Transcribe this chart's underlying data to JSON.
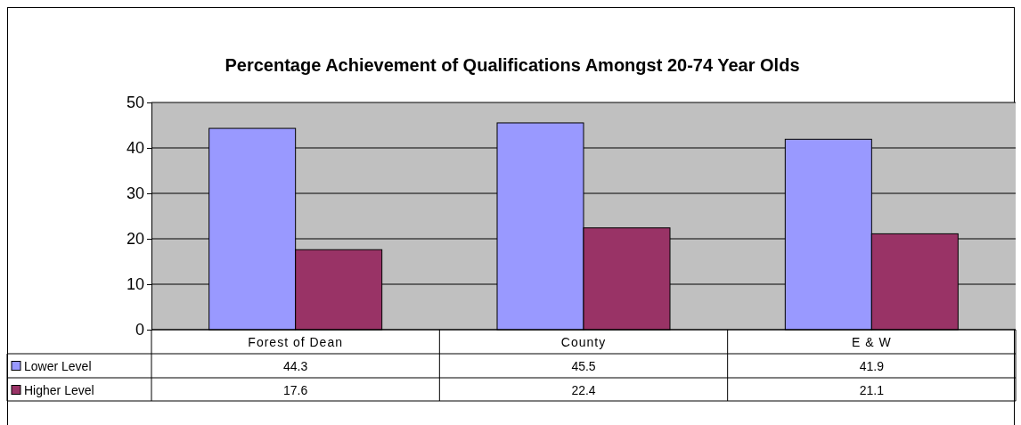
{
  "chart_data": {
    "type": "bar",
    "title": "Percentage Achievement of Qualifications Amongst 20-74 Year Olds",
    "categories": [
      "Forest of Dean",
      "County",
      "E & W"
    ],
    "series": [
      {
        "name": "Lower Level",
        "color": "#9999ff",
        "values": [
          44.3,
          45.5,
          41.9
        ]
      },
      {
        "name": "Higher Level",
        "color": "#993366",
        "values": [
          17.6,
          22.4,
          21.1
        ]
      }
    ],
    "ylim": [
      0,
      50
    ],
    "yticks": [
      0,
      10,
      20,
      30,
      40,
      50
    ],
    "grid": "y",
    "legend": "bottom left",
    "data_labels": true
  }
}
